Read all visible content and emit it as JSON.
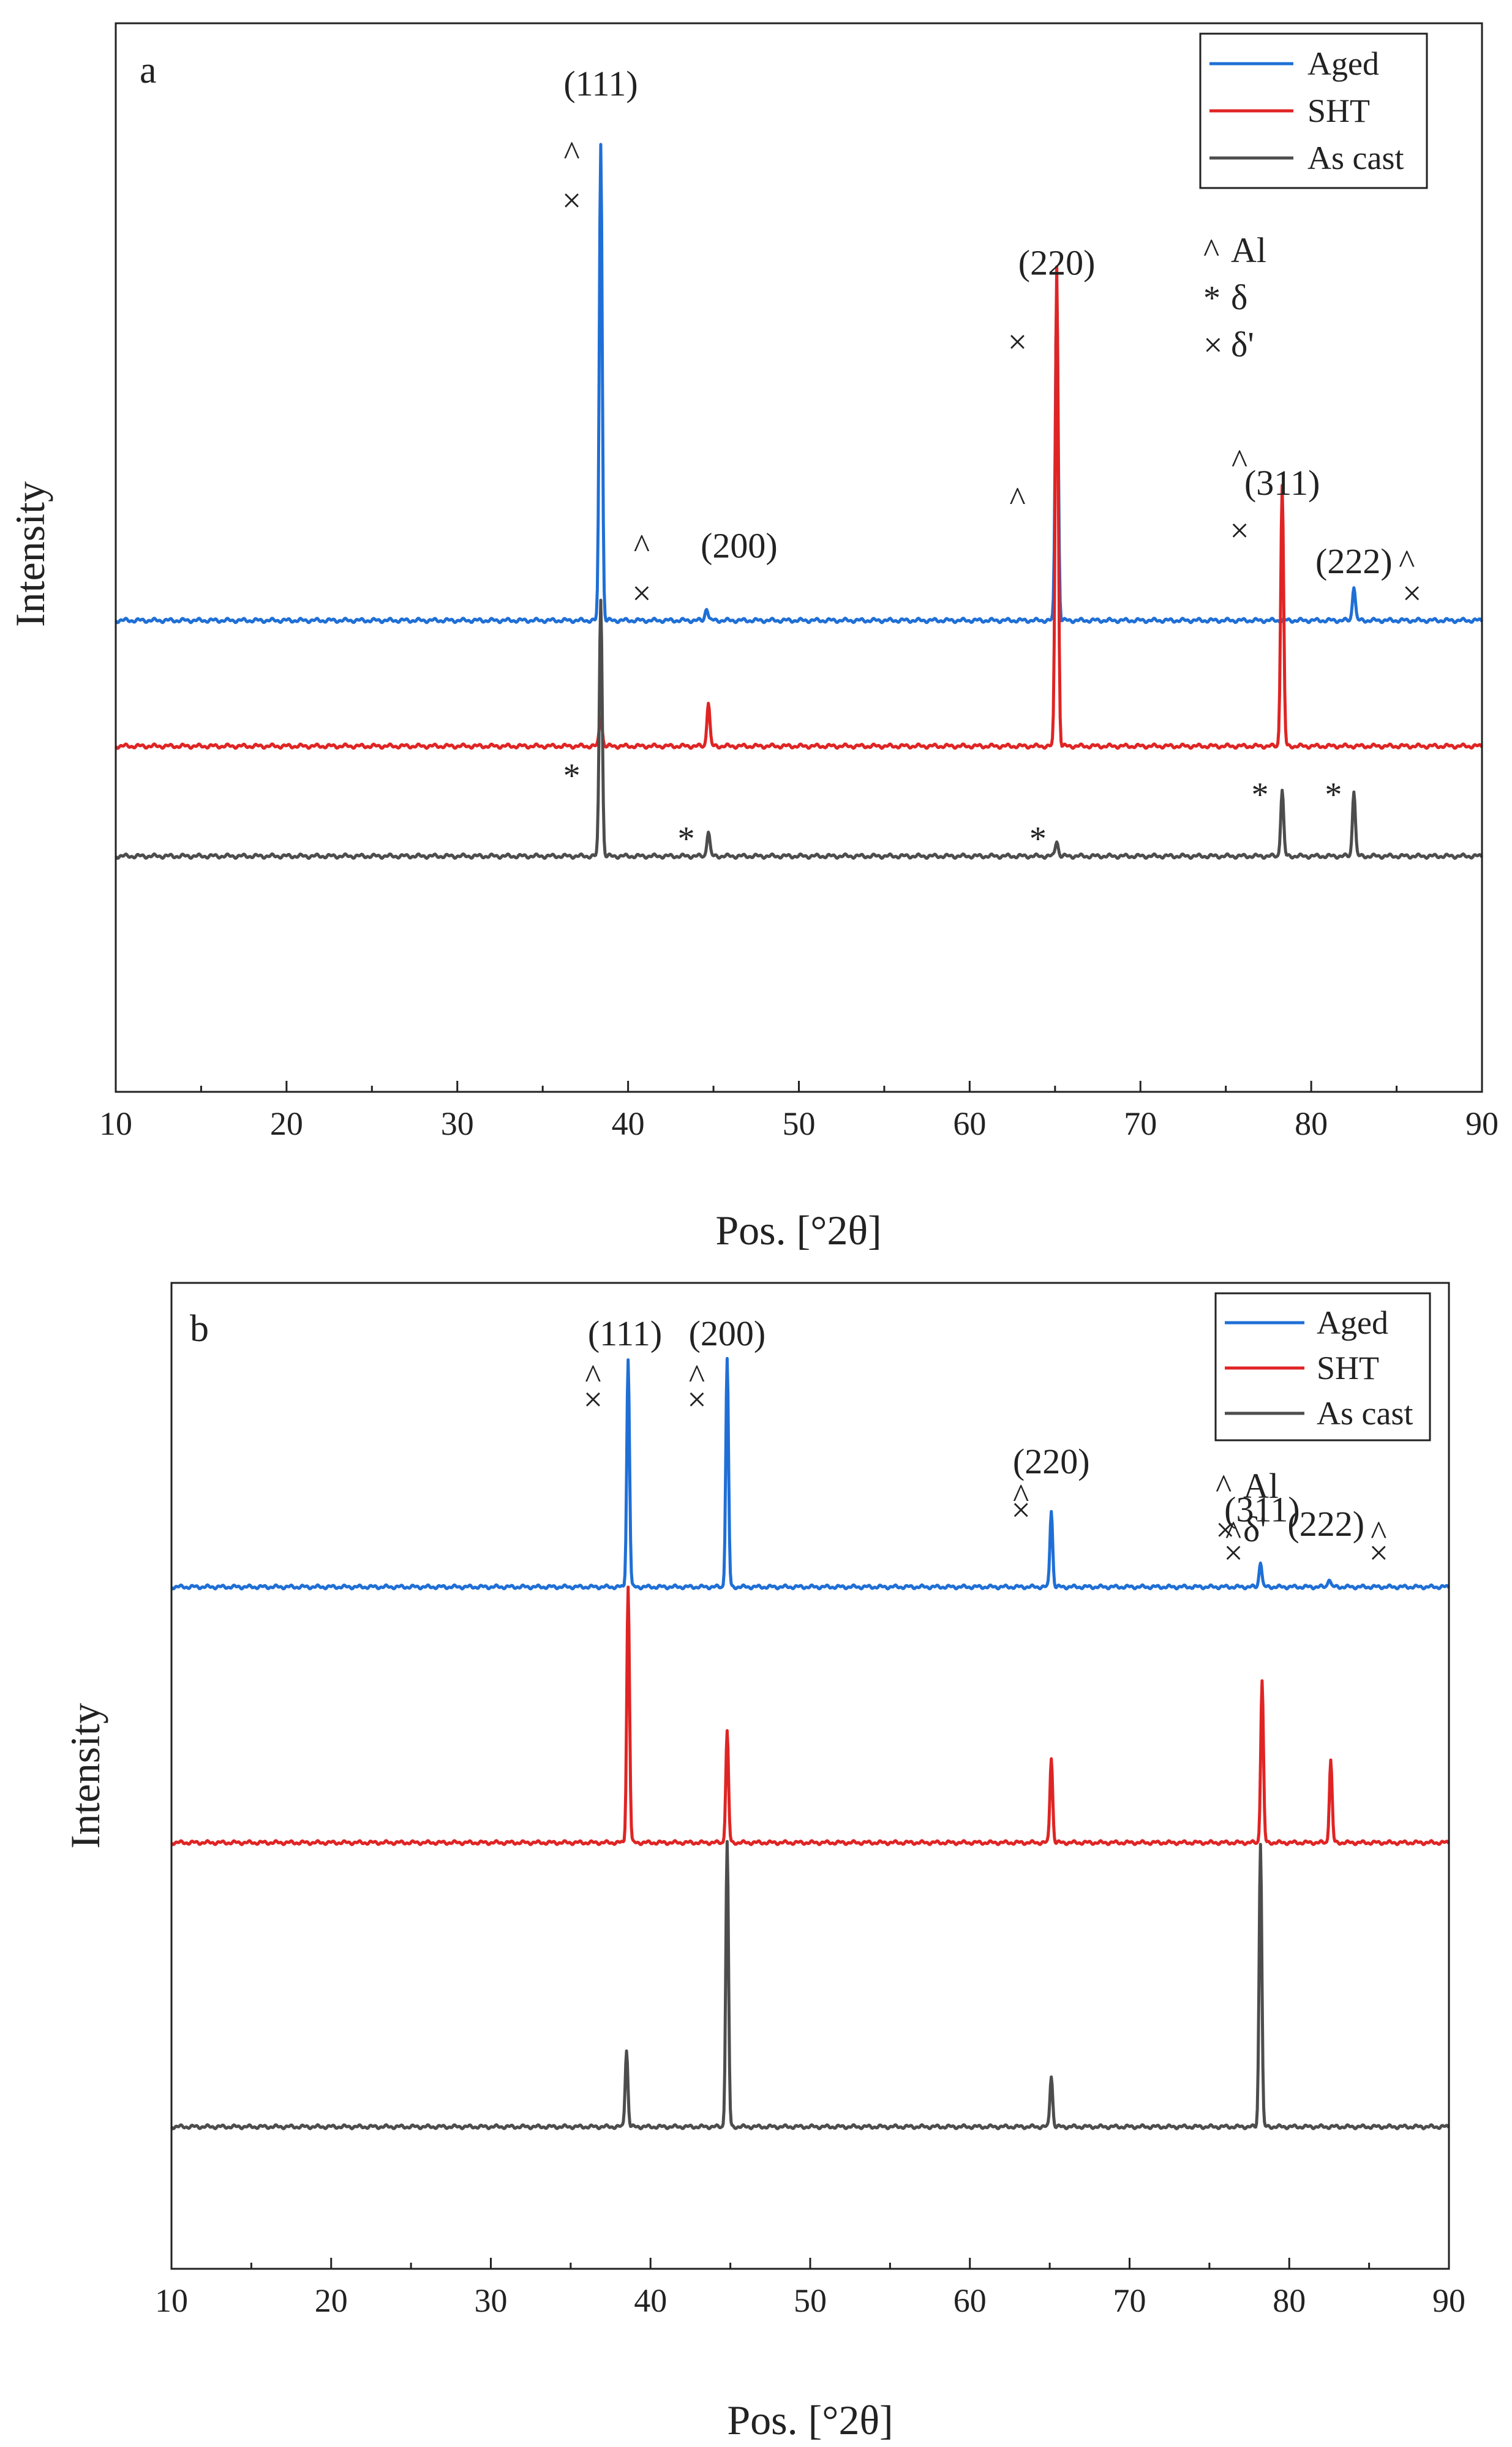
{
  "colors": {
    "Aged": "#1f6fd6",
    "SHT": "#e02424",
    "As cast": "#4d4d4d",
    "axis": "#222222"
  },
  "chart_data": [
    {
      "type": "line",
      "panel": "a",
      "xlabel": "Pos. [°2θ]",
      "ylabel": "Intensity",
      "xlim": [
        10,
        90
      ],
      "xticks": [
        10,
        20,
        30,
        40,
        50,
        60,
        70,
        80,
        90
      ],
      "ylim": [
        -0.75,
        2.65
      ],
      "legend": {
        "placement": "top-right",
        "entries": [
          "Aged",
          "SHT",
          "As cast"
        ]
      },
      "symbol_key": [
        {
          "symbol": "^",
          "phase": "Al"
        },
        {
          "symbol": "*",
          "phase": "δ"
        },
        {
          "symbol": "×",
          "phase": "δ'"
        }
      ],
      "series": [
        {
          "name": "Aged",
          "baseline": 0.75,
          "peaks": [
            [
              38.4,
              1.52
            ],
            [
              44.6,
              0.04
            ],
            [
              65.1,
              1.05
            ],
            [
              78.3,
              0.0
            ],
            [
              82.5,
              0.11
            ]
          ]
        },
        {
          "name": "SHT",
          "baseline": 0.35,
          "peaks": [
            [
              38.4,
              0.1
            ],
            [
              44.7,
              0.14
            ],
            [
              65.1,
              1.53
            ],
            [
              78.3,
              0.83
            ],
            [
              82.5,
              0.0
            ]
          ]
        },
        {
          "name": "As cast",
          "baseline": 0.0,
          "peaks": [
            [
              38.4,
              0.82
            ],
            [
              44.7,
              0.08
            ],
            [
              65.1,
              0.05
            ],
            [
              78.3,
              0.21
            ],
            [
              82.5,
              0.21
            ]
          ]
        }
      ],
      "annotations": [
        {
          "text": "(111)",
          "x": 38.4,
          "y": 2.42
        },
        {
          "text": "(200)",
          "x": 46.5,
          "y": 0.95
        },
        {
          "text": "(220)",
          "x": 65.1,
          "y": 1.85
        },
        {
          "text": "(311)",
          "x": 78.3,
          "y": 1.15
        },
        {
          "text": "(222)",
          "x": 82.5,
          "y": 0.9
        }
      ],
      "phase_marks": [
        {
          "symbol": "^",
          "x": 36.7,
          "y": 2.2
        },
        {
          "symbol": "×",
          "x": 36.7,
          "y": 2.05
        },
        {
          "symbol": "^",
          "x": 40.8,
          "y": 0.95
        },
        {
          "symbol": "×",
          "x": 40.8,
          "y": 0.8
        },
        {
          "symbol": "^",
          "x": 62.8,
          "y": 1.1
        },
        {
          "symbol": "×",
          "x": 62.8,
          "y": 1.6
        },
        {
          "symbol": "^",
          "x": 75.8,
          "y": 1.22
        },
        {
          "symbol": "×",
          "x": 75.8,
          "y": 1.0
        },
        {
          "symbol": "^",
          "x": 85.6,
          "y": 0.9
        },
        {
          "symbol": "×",
          "x": 85.9,
          "y": 0.8
        },
        {
          "symbol": "*",
          "x": 36.7,
          "y": 0.22
        },
        {
          "symbol": "*",
          "x": 43.4,
          "y": 0.02
        },
        {
          "symbol": "*",
          "x": 64.0,
          "y": 0.02
        },
        {
          "symbol": "*",
          "x": 77.0,
          "y": 0.16
        },
        {
          "symbol": "*",
          "x": 81.3,
          "y": 0.16
        }
      ]
    },
    {
      "type": "line",
      "panel": "b",
      "xlabel": "Pos. [°2θ]",
      "ylabel": "Intensity",
      "xlim": [
        10,
        90
      ],
      "xticks": [
        10,
        20,
        30,
        40,
        50,
        60,
        70,
        80,
        90
      ],
      "ylim": [
        -0.5,
        2.97
      ],
      "legend": {
        "placement": "top-right",
        "entries": [
          "Aged",
          "SHT",
          "As cast"
        ]
      },
      "symbol_key": [
        {
          "symbol": "^",
          "phase": "Al"
        },
        {
          "symbol": "×",
          "phase": "δ'"
        }
      ],
      "series": [
        {
          "name": "Aged",
          "baseline": 1.9,
          "peaks": [
            [
              38.6,
              0.8
            ],
            [
              44.8,
              0.8
            ],
            [
              65.1,
              0.27
            ],
            [
              78.2,
              0.09
            ],
            [
              82.5,
              0.03
            ]
          ]
        },
        {
          "name": "SHT",
          "baseline": 1.0,
          "peaks": [
            [
              38.6,
              0.9
            ],
            [
              44.8,
              0.39
            ],
            [
              65.1,
              0.3
            ],
            [
              78.3,
              0.57
            ],
            [
              82.6,
              0.29
            ]
          ]
        },
        {
          "name": "As cast",
          "baseline": 0.0,
          "peaks": [
            [
              38.5,
              0.27
            ],
            [
              44.8,
              1.0
            ],
            [
              65.1,
              0.18
            ],
            [
              78.2,
              1.0
            ]
          ]
        }
      ],
      "annotations": [
        {
          "text": "(111)",
          "x": 38.4,
          "y": 2.75
        },
        {
          "text": "(200)",
          "x": 44.8,
          "y": 2.75
        },
        {
          "text": "(220)",
          "x": 65.1,
          "y": 2.3
        },
        {
          "text": "(311)",
          "x": 78.3,
          "y": 2.13
        },
        {
          "text": "(222)",
          "x": 82.3,
          "y": 2.08
        }
      ],
      "phase_marks": [
        {
          "symbol": "^",
          "x": 36.4,
          "y": 2.6
        },
        {
          "symbol": "×",
          "x": 36.4,
          "y": 2.52
        },
        {
          "symbol": "^",
          "x": 42.9,
          "y": 2.6
        },
        {
          "symbol": "×",
          "x": 42.9,
          "y": 2.52
        },
        {
          "symbol": "^",
          "x": 63.2,
          "y": 2.18
        },
        {
          "symbol": "×",
          "x": 63.2,
          "y": 2.13
        },
        {
          "symbol": "^",
          "x": 76.5,
          "y": 2.05
        },
        {
          "symbol": "×",
          "x": 76.5,
          "y": 1.98
        },
        {
          "symbol": "^",
          "x": 85.6,
          "y": 2.05
        },
        {
          "symbol": "×",
          "x": 85.6,
          "y": 1.98
        }
      ]
    }
  ]
}
